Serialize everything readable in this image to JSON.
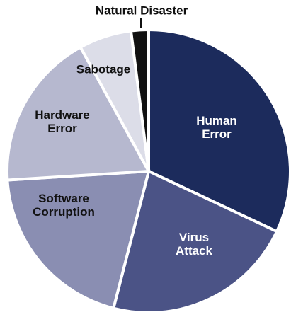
{
  "chart_data": {
    "type": "pie",
    "categories": [
      "Human Error",
      "Virus Attack",
      "Software Corruption",
      "Hardware Error",
      "Sabotage",
      "Natural Disaster"
    ],
    "values": [
      32,
      22,
      20,
      18,
      6,
      2
    ],
    "colors": [
      "#1c2b5c",
      "#4b5386",
      "#8a8eb2",
      "#b6b8cf",
      "#dcdde8",
      "#111111"
    ]
  }
}
